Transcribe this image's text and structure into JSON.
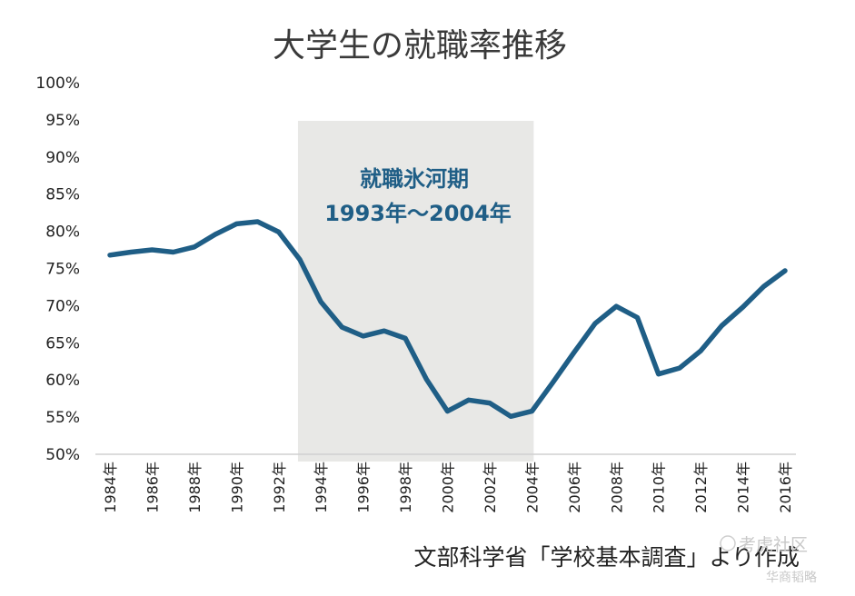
{
  "chart_data": {
    "type": "line",
    "title": "大学生の就職率推移",
    "xlabel": "",
    "ylabel": "",
    "source_note": "文部科学省「学校基本調査」より作成",
    "y_ticks": [
      "100%",
      "95%",
      "90%",
      "85%",
      "80%",
      "75%",
      "70%",
      "65%",
      "60%",
      "55%",
      "50%"
    ],
    "ylim": [
      50,
      100
    ],
    "x_tick_labels": [
      "1984年",
      "1986年",
      "1988年",
      "1990年",
      "1992年",
      "1994年",
      "1996年",
      "1998年",
      "2000年",
      "2002年",
      "2004年",
      "2006年",
      "2008年",
      "2010年",
      "2012年",
      "2014年",
      "2016年"
    ],
    "x": [
      1984,
      1985,
      1986,
      1987,
      1988,
      1989,
      1990,
      1991,
      1992,
      1993,
      1994,
      1995,
      1996,
      1997,
      1998,
      1999,
      2000,
      2001,
      2002,
      2003,
      2004,
      2005,
      2006,
      2007,
      2008,
      2009,
      2010,
      2011,
      2012,
      2013,
      2014,
      2015,
      2016
    ],
    "series": [
      {
        "name": "",
        "values": [
          76.8,
          77.2,
          77.5,
          77.2,
          77.9,
          79.6,
          81.0,
          81.3,
          79.9,
          76.2,
          70.5,
          67.1,
          65.9,
          66.6,
          65.6,
          60.1,
          55.8,
          57.3,
          56.9,
          55.1,
          55.8,
          59.7,
          63.7,
          67.6,
          69.9,
          68.4,
          60.8,
          61.6,
          63.9,
          67.3,
          69.8,
          72.6,
          74.7
        ]
      }
    ],
    "highlight_band": {
      "start": 1993,
      "end": 2004,
      "label_line1": "就職氷河期",
      "label_line2": "1993年～2004年",
      "fill_color": "#e8e8e6"
    },
    "line_color": "#1f5e86",
    "annotation_color": "#1f5e86",
    "grid": false
  },
  "watermark": {
    "text": "华商韬略",
    "logo_text": "考虎社区"
  }
}
